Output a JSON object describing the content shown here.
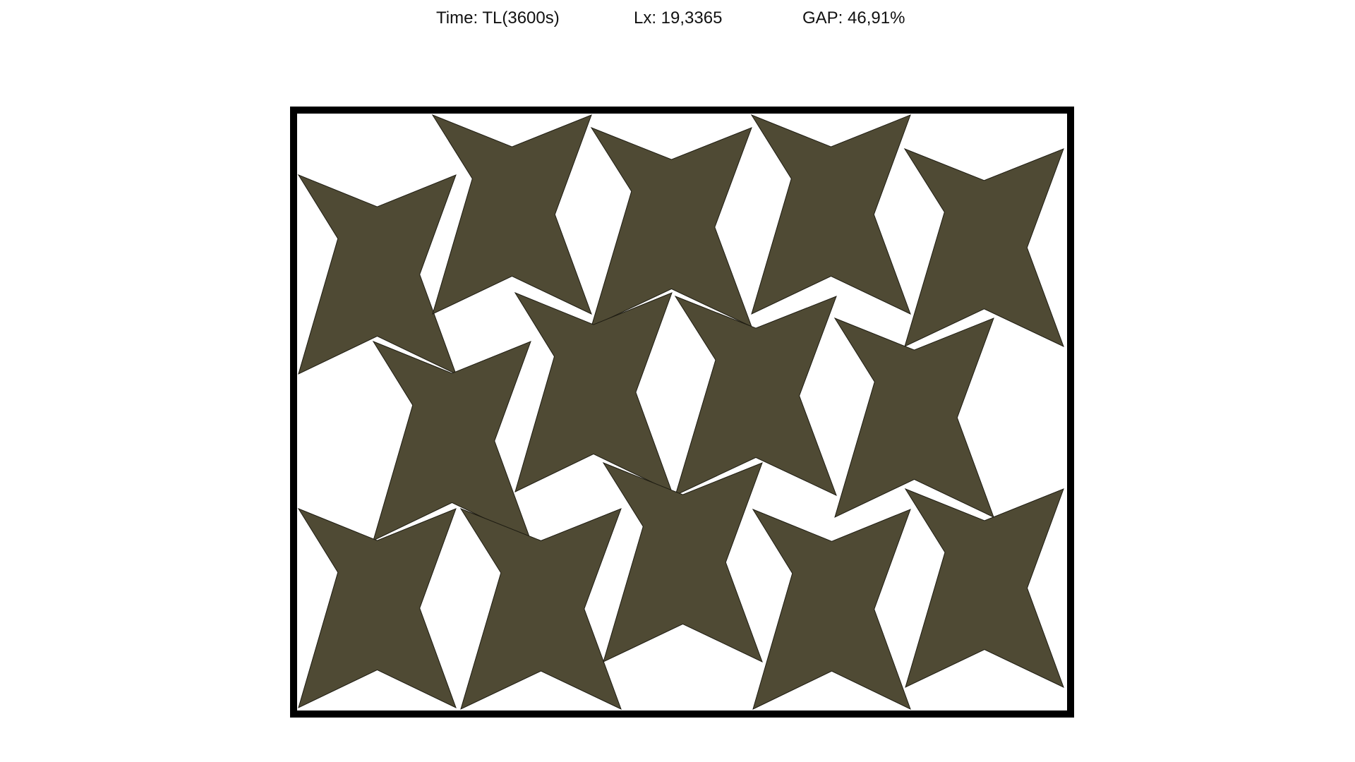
{
  "stats": {
    "time_label": "Time: TL(3600s)",
    "lx_label": "Lx: 19,3365",
    "gap_label": "GAP: 46,91%"
  },
  "colors": {
    "piece_fill": "#4f4a34",
    "piece_stroke": "#1e1c12",
    "container_border": "#000000",
    "background": "#ffffff"
  },
  "pieces": [
    {
      "shape": "star",
      "flipped": false
    },
    {
      "shape": "star",
      "flipped": false
    },
    {
      "shape": "star",
      "flipped": false
    },
    {
      "shape": "star",
      "flipped": false
    },
    {
      "shape": "star",
      "flipped": false
    },
    {
      "shape": "star",
      "flipped": false
    },
    {
      "shape": "star",
      "flipped": false
    },
    {
      "shape": "star",
      "flipped": false
    },
    {
      "shape": "star",
      "flipped": false
    },
    {
      "shape": "star",
      "flipped": false
    },
    {
      "shape": "star",
      "flipped": false
    },
    {
      "shape": "star",
      "flipped": false
    },
    {
      "shape": "star",
      "flipped": false
    },
    {
      "shape": "star",
      "flipped": false
    }
  ]
}
